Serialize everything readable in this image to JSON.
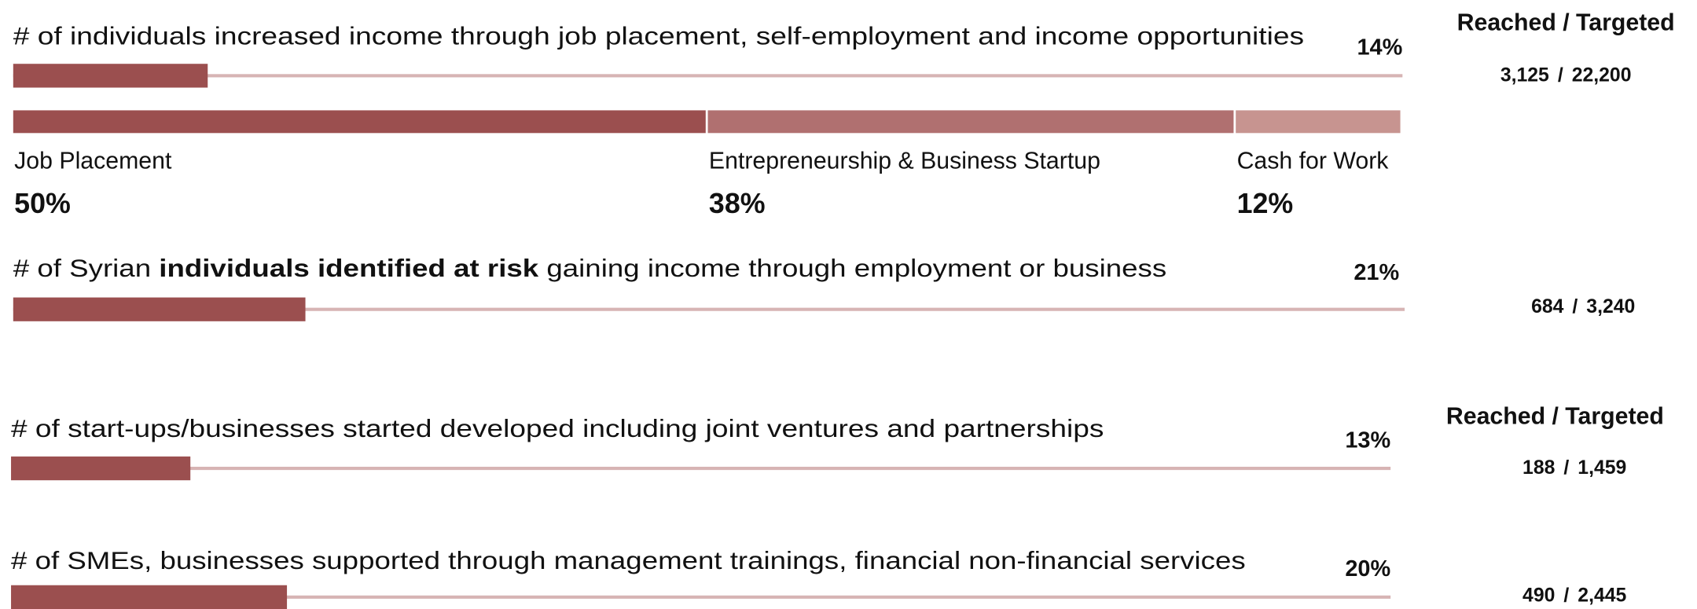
{
  "indicators": [
    {
      "title": "# of individuals increased income through job placement, self-employment and income opportunities",
      "percent": 14,
      "percent_label": "14%",
      "header": "Reached / Targeted",
      "reached": "3,125",
      "separator": "/",
      "targeted": "22,200",
      "breakdown": [
        {
          "label": "Job Placement",
          "value": 50,
          "value_label": "50%",
          "color": "#9b4f4f"
        },
        {
          "label": "Entrepreneurship & Business Startup",
          "value": 38,
          "value_label": "38%",
          "color": "#b07070"
        },
        {
          "label": "Cash for Work",
          "value": 12,
          "value_label": "12%",
          "color": "#c79490"
        }
      ]
    },
    {
      "title_parts": [
        "# of Syrian ",
        "individuals identified at risk",
        " gaining income through employment or business"
      ],
      "percent": 21,
      "percent_label": "21%",
      "reached": "684",
      "separator": "/",
      "targeted": "3,240"
    },
    {
      "title": "# of start-ups/businesses started developed including joint ventures and partnerships",
      "percent": 13,
      "percent_label": "13%",
      "header": "Reached / Targeted",
      "reached": "188",
      "separator": "/",
      "targeted": "1,459"
    },
    {
      "title": "# of SMEs, businesses supported through management trainings, financial non-financial services",
      "percent": 20,
      "percent_label": "20%",
      "reached": "490",
      "separator": "/",
      "targeted": "2,445"
    }
  ]
}
